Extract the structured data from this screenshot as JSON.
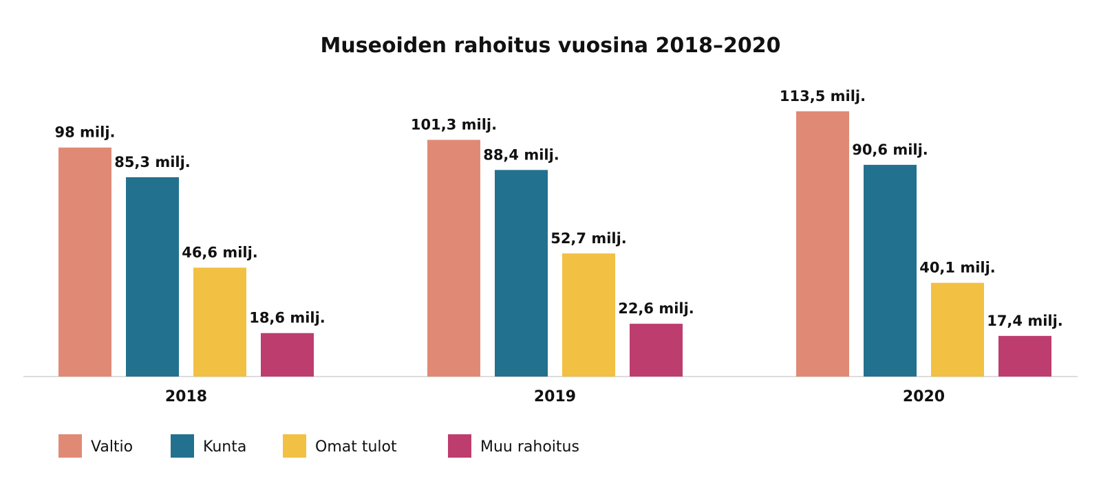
{
  "chart_data": {
    "type": "bar",
    "title": "Museoiden rahoitus vuosina 2018–2020",
    "categories": [
      "2018",
      "2019",
      "2020"
    ],
    "series": [
      {
        "name": "Valtio",
        "color": "#E08A76",
        "values": [
          98,
          101.3,
          113.5
        ],
        "labels": [
          "98 milj.",
          "101,3 milj.",
          "113,5 milj."
        ]
      },
      {
        "name": "Kunta",
        "color": "#22718E",
        "values": [
          85.3,
          88.4,
          90.6
        ],
        "labels": [
          "85,3 milj.",
          "88,4 milj.",
          "90,6 milj."
        ]
      },
      {
        "name": "Omat tulot",
        "color": "#F2C043",
        "values": [
          46.6,
          52.7,
          40.1
        ],
        "labels": [
          "46,6 milj.",
          "52,7 milj.",
          "40,1 milj."
        ]
      },
      {
        "name": "Muu rahoitus",
        "color": "#BD3D6E",
        "values": [
          18.6,
          22.6,
          17.4
        ],
        "labels": [
          "18,6 milj.",
          "22,6 milj.",
          "17,4 milj."
        ]
      }
    ],
    "ylim": [
      0,
      113.5
    ],
    "grid": false,
    "legend": "bottom-left",
    "xlabel": "",
    "ylabel": ""
  }
}
